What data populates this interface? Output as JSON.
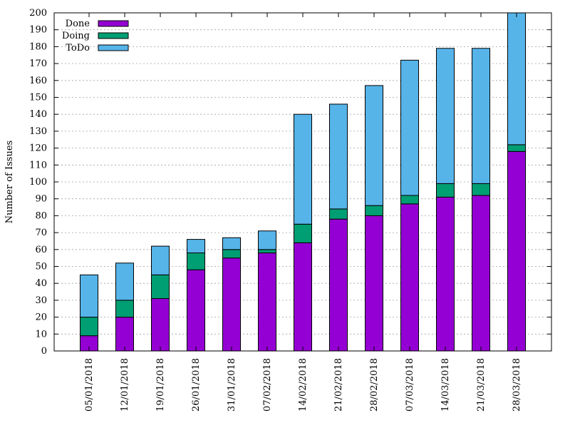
{
  "chart_data": {
    "type": "bar",
    "stacked": true,
    "title": "",
    "xlabel": "",
    "ylabel": "Number of Issues",
    "ylim": [
      0,
      200
    ],
    "ytick_step": 10,
    "grid": true,
    "legend_position": "top-left",
    "categories": [
      "05/01/2018",
      "12/01/2018",
      "19/01/2018",
      "26/01/2018",
      "31/01/2018",
      "07/02/2018",
      "14/02/2018",
      "21/02/2018",
      "28/02/2018",
      "07/03/2018",
      "14/03/2018",
      "21/03/2018",
      "28/03/2018"
    ],
    "series": [
      {
        "name": "Done",
        "color": "#9400d3",
        "values": [
          9,
          20,
          31,
          48,
          55,
          58,
          64,
          78,
          80,
          87,
          91,
          92,
          118
        ]
      },
      {
        "name": "Doing",
        "color": "#009e73",
        "values": [
          11,
          10,
          14,
          10,
          5,
          2,
          11,
          6,
          6,
          5,
          8,
          7,
          4
        ]
      },
      {
        "name": "ToDo",
        "color": "#56b4e9",
        "values": [
          25,
          22,
          17,
          8,
          7,
          11,
          65,
          62,
          71,
          80,
          80,
          80,
          78
        ]
      }
    ]
  }
}
